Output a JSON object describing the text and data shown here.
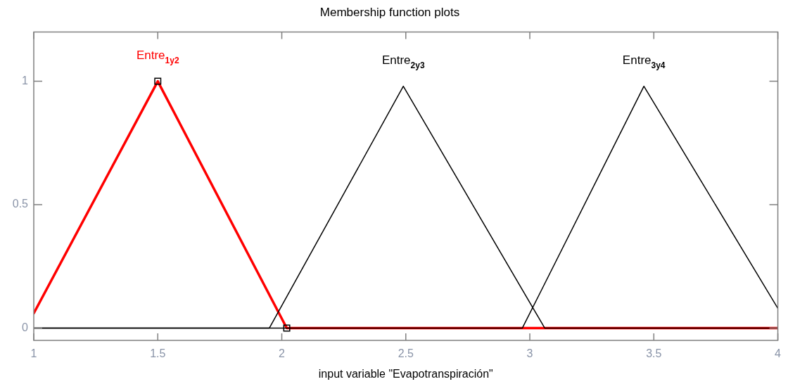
{
  "chart_data": {
    "type": "line",
    "title": "Membership function plots",
    "xlabel": "input variable \"Evapotranspiración\"",
    "xlim": [
      1,
      4
    ],
    "xticks": [
      1,
      1.5,
      2,
      2.5,
      3,
      3.5,
      4
    ],
    "ylim": [
      -0.05,
      1.2
    ],
    "yticks": [
      0,
      0.5,
      1
    ],
    "grid": false,
    "legend": false,
    "series": [
      {
        "name": "Entre$_{1y2}$",
        "color": "#ff0000",
        "x": [
          1,
          1.5,
          2.02,
          4
        ],
        "values": [
          0.06,
          1,
          0,
          0
        ]
      },
      {
        "name": "Entre$_{2y3}$",
        "color": "#000000",
        "x": [
          1,
          1.95,
          2.49,
          3.06,
          4
        ],
        "values": [
          0,
          0,
          0.98,
          0,
          0
        ]
      },
      {
        "name": "Entre$_{3y4}$",
        "color": "#000000",
        "x": [
          1,
          2.97,
          3.46,
          4
        ],
        "values": [
          0,
          0,
          0.98,
          0.08
        ]
      },
      {
        "type": "scatter",
        "color": "#000000",
        "marker": "square",
        "x": [
          1.5,
          2.02
        ],
        "values": [
          1,
          0
        ]
      }
    ]
  }
}
